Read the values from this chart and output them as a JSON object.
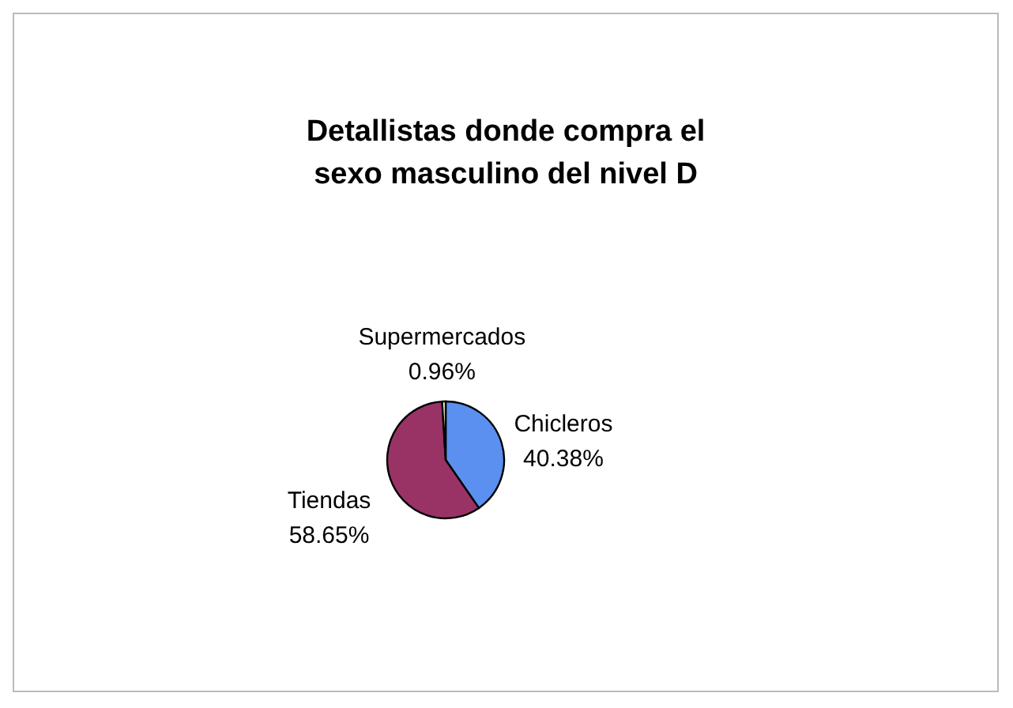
{
  "chart_data": {
    "type": "pie",
    "title": "Detallistas donde compra el sexo masculino del nivel D",
    "categories": [
      "Chicleros",
      "Tiendas",
      "Supermercados"
    ],
    "values": [
      40.38,
      58.65,
      0.96
    ],
    "value_labels": [
      "40.38%",
      "58.65%",
      "0.96%"
    ],
    "colors": [
      "#5b8ff0",
      "#993366",
      "#ffffcc"
    ],
    "legend": false
  }
}
